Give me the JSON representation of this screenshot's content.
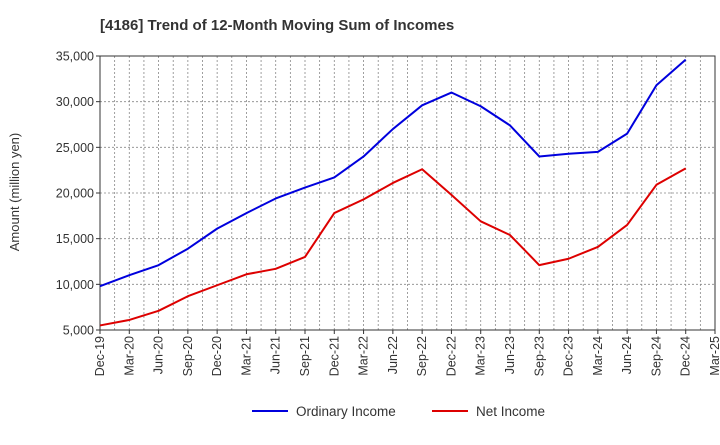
{
  "chart_data": {
    "type": "line",
    "title": "[4186]  Trend of 12-Month Moving Sum of Incomes",
    "ylabel": "Amount (million yen)",
    "xlabel": "",
    "ylim": [
      5000,
      35000
    ],
    "yticks": [
      5000,
      10000,
      15000,
      20000,
      25000,
      30000,
      35000
    ],
    "ytick_labels": [
      "5,000",
      "10,000",
      "15,000",
      "20,000",
      "25,000",
      "30,000",
      "35,000"
    ],
    "categories": [
      "Dec-19",
      "Mar-20",
      "Jun-20",
      "Sep-20",
      "Dec-20",
      "Mar-21",
      "Jun-21",
      "Sep-21",
      "Dec-21",
      "Mar-22",
      "Jun-22",
      "Sep-22",
      "Dec-22",
      "Mar-23",
      "Jun-23",
      "Sep-23",
      "Dec-23",
      "Mar-24",
      "Jun-24",
      "Sep-24",
      "Dec-24",
      "Mar-25"
    ],
    "grid": true,
    "legend_position": "bottom",
    "series": [
      {
        "name": "Ordinary Income",
        "color": "#0000dd",
        "values": [
          9800,
          11000,
          12100,
          13900,
          16100,
          17800,
          19400,
          20600,
          21700,
          24000,
          27000,
          29600,
          31000,
          29500,
          27400,
          24000,
          24300,
          24500,
          26500,
          31800,
          34600,
          null
        ]
      },
      {
        "name": "Net Income",
        "color": "#dd0000",
        "values": [
          5500,
          6100,
          7100,
          8700,
          9900,
          11100,
          11700,
          13000,
          17800,
          19300,
          21100,
          22600,
          19800,
          16900,
          15400,
          12100,
          12800,
          14100,
          16500,
          20900,
          22700,
          null
        ]
      }
    ]
  }
}
